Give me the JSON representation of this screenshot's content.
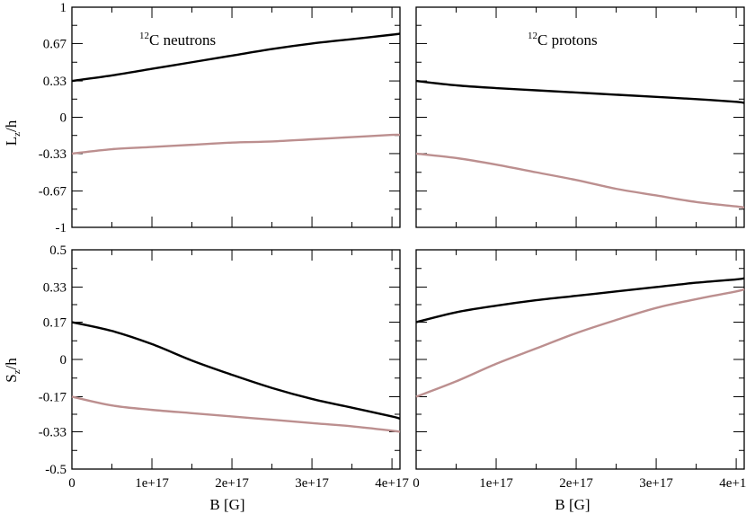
{
  "chart_data": [
    {
      "type": "line",
      "panel": "top-left",
      "annotation": {
        "sup": "12",
        "text": "C neutrons"
      },
      "xlabel": "",
      "ylabel": {
        "main": "L",
        "sub": "z",
        "rest": "/h"
      },
      "xlim": [
        0,
        4.1e+17
      ],
      "ylim": [
        -1,
        1
      ],
      "yticks": [
        -1,
        -0.67,
        -0.33,
        0,
        0.33,
        0.67,
        1
      ],
      "yticklabels": [
        "-1",
        "-0.67",
        "-0.33",
        "0",
        "0.33",
        "0.67",
        "1"
      ],
      "xticks": [
        0,
        1e+17,
        2e+17,
        3e+17,
        4e+17
      ],
      "xticklabels": [],
      "x": [
        0,
        5e+16,
        1e+17,
        1.5e+17,
        2e+17,
        2.5e+17,
        3e+17,
        3.5e+17,
        4e+17,
        4.1e+17
      ],
      "series": [
        {
          "name": "black",
          "color": "#000000",
          "values": [
            0.33,
            0.38,
            0.44,
            0.5,
            0.56,
            0.62,
            0.67,
            0.71,
            0.75,
            0.76
          ]
        },
        {
          "name": "pink",
          "color": "#bc8f8f",
          "values": [
            -0.33,
            -0.29,
            -0.27,
            -0.25,
            -0.23,
            -0.22,
            -0.2,
            -0.18,
            -0.16,
            -0.16
          ]
        }
      ]
    },
    {
      "type": "line",
      "panel": "top-right",
      "annotation": {
        "sup": "12",
        "text": "C protons"
      },
      "xlabel": "",
      "xlim": [
        0,
        4.1e+17
      ],
      "ylim": [
        -1,
        1
      ],
      "yticks": [
        -1,
        -0.67,
        -0.33,
        0,
        0.33,
        0.67,
        1
      ],
      "xticks": [
        0,
        1e+17,
        2e+17,
        3e+17,
        4e+17
      ],
      "xticklabels": [],
      "x": [
        0,
        5e+16,
        1e+17,
        1.5e+17,
        2e+17,
        2.5e+17,
        3e+17,
        3.5e+17,
        4e+17,
        4.1e+17
      ],
      "series": [
        {
          "name": "black",
          "color": "#000000",
          "values": [
            0.33,
            0.29,
            0.265,
            0.245,
            0.225,
            0.205,
            0.185,
            0.165,
            0.14,
            0.13
          ]
        },
        {
          "name": "pink",
          "color": "#bc8f8f",
          "values": [
            -0.33,
            -0.37,
            -0.43,
            -0.5,
            -0.57,
            -0.65,
            -0.71,
            -0.77,
            -0.81,
            -0.82
          ]
        }
      ]
    },
    {
      "type": "line",
      "panel": "bottom-left",
      "xlabel": "B [G]",
      "ylabel": {
        "main": "S",
        "sub": "z",
        "rest": "/h"
      },
      "xlim": [
        0,
        4.1e+17
      ],
      "ylim": [
        -0.5,
        0.5
      ],
      "yticks": [
        -0.5,
        -0.33,
        -0.17,
        0,
        0.17,
        0.33,
        0.5
      ],
      "yticklabels": [
        "-0.5",
        "-0.33",
        "-0.17",
        "0",
        "0.17",
        "0.33",
        "0.5"
      ],
      "xticks": [
        0,
        1e+17,
        2e+17,
        3e+17,
        4e+17
      ],
      "xticklabels": [
        "0",
        "1e+17",
        "2e+17",
        "3e+17",
        "4e+17"
      ],
      "x": [
        0,
        5e+16,
        1e+17,
        1.5e+17,
        2e+17,
        2.5e+17,
        3e+17,
        3.5e+17,
        4e+17,
        4.1e+17
      ],
      "series": [
        {
          "name": "black",
          "color": "#000000",
          "values": [
            0.17,
            0.13,
            0.07,
            -0.005,
            -0.07,
            -0.13,
            -0.18,
            -0.22,
            -0.26,
            -0.27
          ]
        },
        {
          "name": "pink",
          "color": "#bc8f8f",
          "values": [
            -0.17,
            -0.21,
            -0.23,
            -0.245,
            -0.26,
            -0.275,
            -0.29,
            -0.305,
            -0.325,
            -0.33
          ]
        }
      ]
    },
    {
      "type": "line",
      "panel": "bottom-right",
      "xlabel": "B [G]",
      "xlim": [
        0,
        4.1e+17
      ],
      "ylim": [
        -0.5,
        0.5
      ],
      "yticks": [
        -0.5,
        -0.33,
        -0.17,
        0,
        0.17,
        0.33,
        0.5
      ],
      "xticks": [
        0,
        1e+17,
        2e+17,
        3e+17,
        4e+17
      ],
      "xticklabels": [
        "0",
        "1e+17",
        "2e+17",
        "3e+17",
        "4e+17"
      ],
      "x": [
        0,
        5e+16,
        1e+17,
        1.5e+17,
        2e+17,
        2.5e+17,
        3e+17,
        3.5e+17,
        4e+17,
        4.1e+17
      ],
      "series": [
        {
          "name": "black",
          "color": "#000000",
          "values": [
            0.17,
            0.215,
            0.245,
            0.27,
            0.29,
            0.31,
            0.33,
            0.35,
            0.365,
            0.37
          ]
        },
        {
          "name": "pink",
          "color": "#bc8f8f",
          "values": [
            -0.17,
            -0.1,
            -0.02,
            0.05,
            0.12,
            0.18,
            0.235,
            0.275,
            0.31,
            0.32
          ]
        }
      ]
    }
  ]
}
